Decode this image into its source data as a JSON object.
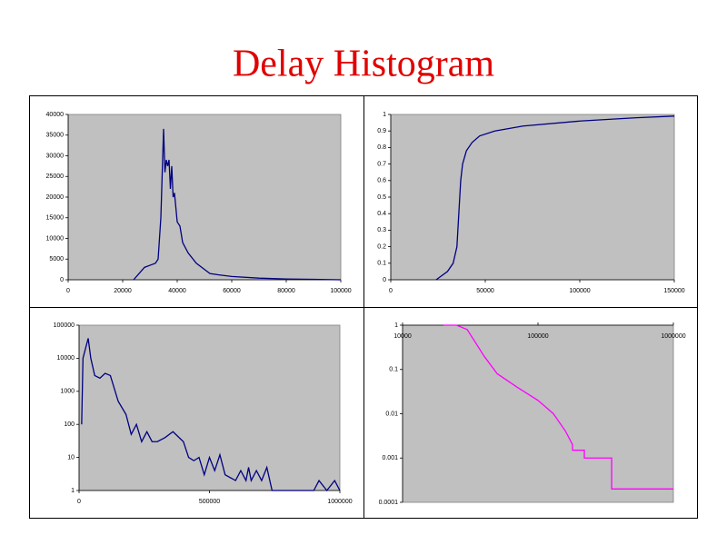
{
  "title": "Delay Histogram",
  "chart_data": [
    {
      "type": "line",
      "color": "#000080",
      "plot_bg": "#c0c0c0",
      "x": [
        24000,
        26000,
        28000,
        30000,
        32000,
        33000,
        34000,
        35000,
        35500,
        36000,
        36500,
        37000,
        37500,
        38000,
        38500,
        39000,
        40000,
        41000,
        42000,
        44000,
        47000,
        50000,
        52000,
        55000,
        60000,
        70000,
        80000,
        90000,
        100000
      ],
      "values": [
        0,
        1500,
        3000,
        3500,
        4000,
        5000,
        15000,
        36500,
        26000,
        29000,
        27500,
        29000,
        22000,
        27500,
        20000,
        21000,
        14000,
        13000,
        9000,
        6500,
        4000,
        2500,
        1500,
        1200,
        800,
        400,
        200,
        100,
        0
      ],
      "xlim": [
        0,
        100000
      ],
      "xticks": [
        0,
        20000,
        40000,
        60000,
        80000,
        100000
      ],
      "ylim": [
        0,
        40000
      ],
      "yticks": [
        0,
        5000,
        10000,
        15000,
        20000,
        25000,
        30000,
        35000,
        40000
      ]
    },
    {
      "type": "line",
      "color": "#000080",
      "plot_bg": "#c0c0c0",
      "x": [
        24000,
        30000,
        33000,
        35000,
        36000,
        37000,
        38000,
        40000,
        43000,
        47000,
        55000,
        70000,
        100000,
        130000,
        150000
      ],
      "values": [
        0,
        0.05,
        0.1,
        0.2,
        0.4,
        0.6,
        0.7,
        0.78,
        0.83,
        0.87,
        0.9,
        0.93,
        0.96,
        0.98,
        0.99
      ],
      "xlim": [
        0,
        150000
      ],
      "xticks": [
        0,
        50000,
        100000,
        150000
      ],
      "ylim": [
        0,
        1
      ],
      "yticks": [
        0,
        0.1,
        0.2,
        0.3,
        0.4,
        0.5,
        0.6,
        0.7,
        0.8,
        0.9,
        1
      ]
    },
    {
      "type": "line",
      "color": "#000080",
      "plot_bg": "#c0c0c0",
      "ylog": true,
      "x": [
        10000,
        15000,
        25000,
        35000,
        45000,
        60000,
        80000,
        100000,
        120000,
        150000,
        180000,
        200000,
        220000,
        240000,
        260000,
        280000,
        300000,
        330000,
        360000,
        400000,
        420000,
        440000,
        460000,
        480000,
        500000,
        520000,
        540000,
        560000,
        600000,
        620000,
        640000,
        650000,
        660000,
        680000,
        700000,
        720000,
        740000,
        800000,
        900000,
        920000,
        950000,
        980000,
        1000000
      ],
      "values": [
        100,
        10000,
        20000,
        40000,
        10000,
        3000,
        2500,
        3500,
        3000,
        500,
        200,
        50,
        100,
        30,
        60,
        30,
        30,
        40,
        60,
        30,
        10,
        8,
        10,
        3,
        10,
        4,
        12,
        3,
        2,
        4,
        2,
        5,
        2,
        4,
        2,
        5,
        1,
        1,
        1,
        2,
        1,
        2,
        1
      ],
      "xlim": [
        0,
        1000000
      ],
      "xticks": [
        0,
        500000,
        1000000
      ],
      "ylim": [
        1,
        100000
      ],
      "yticks": [
        1,
        10,
        100,
        1000,
        10000,
        100000
      ]
    },
    {
      "type": "line",
      "color": "#ff00ff",
      "plot_bg": "#c0c0c0",
      "xlog": true,
      "ylog": true,
      "xaxis_position": "top",
      "x": [
        20000,
        25000,
        30000,
        40000,
        50000,
        70000,
        100000,
        130000,
        160000,
        180000,
        180000,
        220000,
        220000,
        350000,
        350000,
        1000000
      ],
      "values": [
        1,
        1,
        0.8,
        0.2,
        0.08,
        0.04,
        0.02,
        0.01,
        0.004,
        0.002,
        0.0015,
        0.0015,
        0.001,
        0.001,
        0.0002,
        0.0002
      ],
      "xlim": [
        10000,
        1000000
      ],
      "xticks": [
        10000,
        100000,
        1000000
      ],
      "ylim": [
        0.0001,
        1
      ],
      "yticks": [
        1,
        0.1,
        0.01,
        0.001,
        0.0001
      ]
    }
  ]
}
